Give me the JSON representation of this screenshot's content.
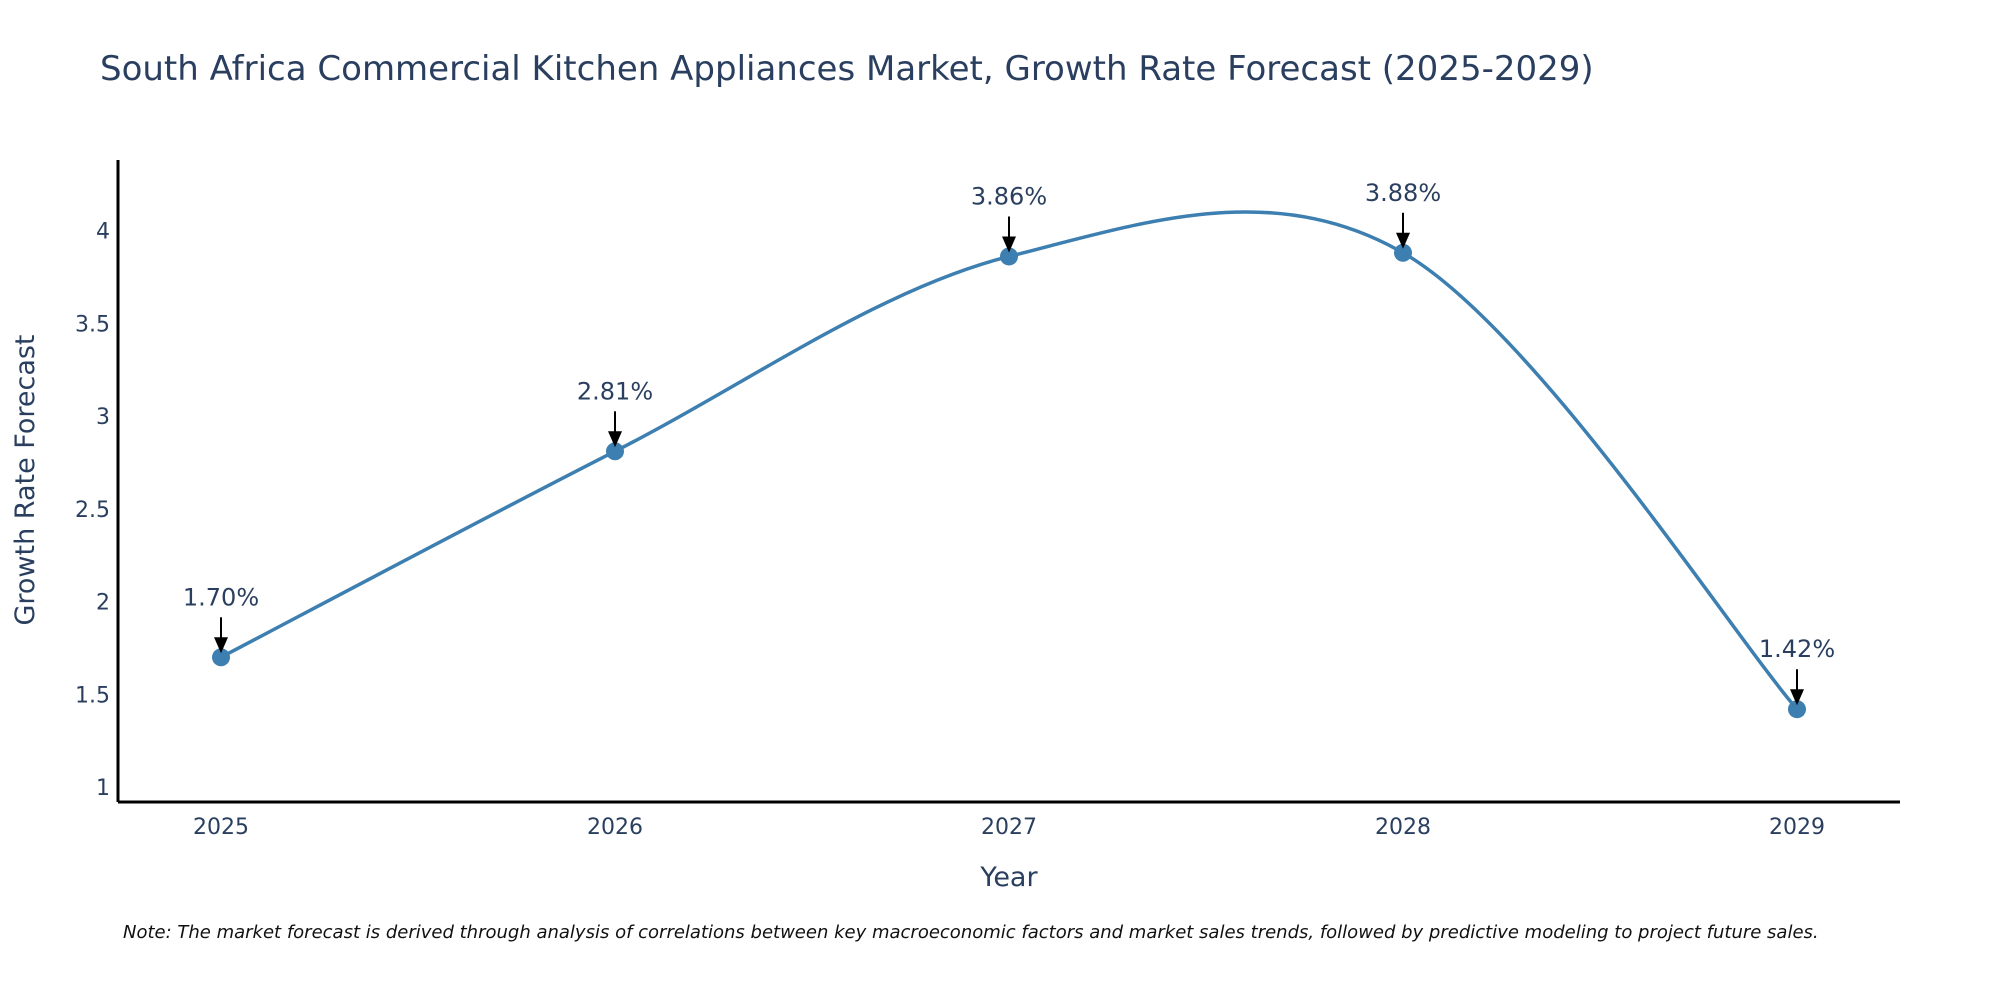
{
  "chart_data": {
    "type": "line",
    "title": "South Africa Commercial Kitchen Appliances Market, Growth Rate Forecast (2025-2029)",
    "xlabel": "Year",
    "ylabel": "Growth Rate Forecast",
    "x": [
      "2025",
      "2026",
      "2027",
      "2028",
      "2029"
    ],
    "series": [
      {
        "name": "Growth Rate Forecast",
        "values": [
          1.7,
          2.81,
          3.86,
          3.88,
          1.42
        ]
      }
    ],
    "data_labels": [
      "1.70%",
      "2.81%",
      "3.86%",
      "3.88%",
      "1.42%"
    ],
    "y_ticks": [
      "1",
      "1.5",
      "2",
      "2.5",
      "3",
      "3.5",
      "4"
    ],
    "ylim": [
      0.92,
      4.38
    ],
    "grid": false,
    "line_shape": "spline",
    "colors": {
      "line": "#3d7fb0",
      "marker": "#3d7fb0",
      "arrow": "#000000",
      "axis": "#000000",
      "text": "#2a3f5f"
    },
    "note": "Note: The market forecast is derived through analysis of correlations between key macroeconomic factors and market sales trends, followed by predictive modeling to project future sales."
  }
}
